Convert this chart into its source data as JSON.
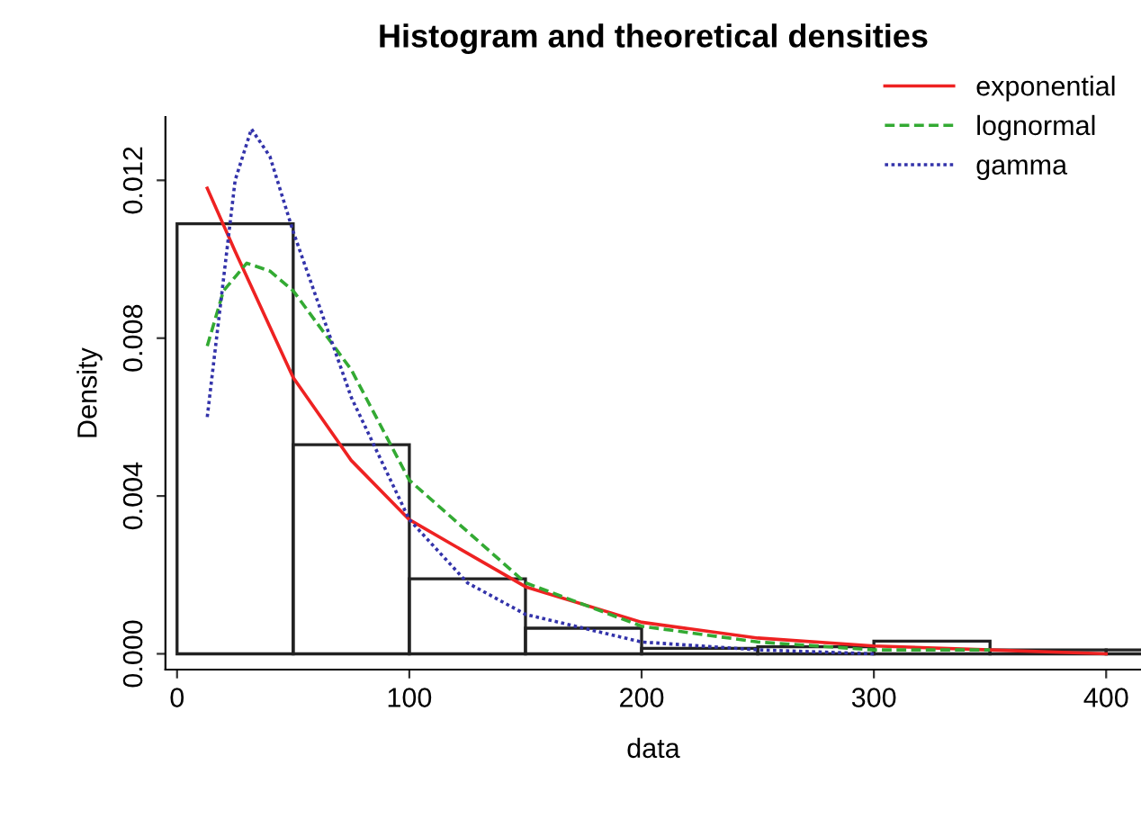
{
  "chart_data": {
    "type": "histogram",
    "title": "Histogram and theoretical densities",
    "xlabel": "data",
    "ylabel": "Density",
    "bins": [
      0,
      50,
      100,
      150,
      200,
      250,
      300,
      350,
      400,
      450
    ],
    "values": [
      0.0109,
      0.0053,
      0.0019,
      0.00065,
      0.00014,
      0.00018,
      0.00032,
      0.0001,
      0.0001
    ],
    "color": "#ffffff",
    "series": [
      {
        "name": "exponential",
        "type": "line",
        "color": "#ee2222",
        "line_style": "solid",
        "x": [
          13,
          25,
          50,
          75,
          100,
          150,
          200,
          250,
          300,
          350,
          400
        ],
        "values": [
          0.0118,
          0.0102,
          0.007,
          0.0049,
          0.0034,
          0.0017,
          0.0008,
          0.0004,
          0.0002,
          0.0001,
          0.0
        ]
      },
      {
        "name": "lognormal",
        "type": "line",
        "color": "#33aa33",
        "line_style": "dashed",
        "x": [
          13,
          20,
          30,
          40,
          50,
          75,
          100,
          150,
          200,
          250,
          300,
          350
        ],
        "values": [
          0.0078,
          0.0092,
          0.0099,
          0.0097,
          0.0092,
          0.0072,
          0.0044,
          0.0018,
          0.0007,
          0.0003,
          0.0001,
          0.0001
        ]
      },
      {
        "name": "gamma",
        "type": "line",
        "color": "#3333aa",
        "line_style": "dotted",
        "x": [
          13,
          20,
          25,
          32,
          40,
          50,
          75,
          100,
          125,
          150,
          200,
          250,
          300
        ],
        "values": [
          0.006,
          0.0095,
          0.012,
          0.0133,
          0.0126,
          0.0107,
          0.0065,
          0.0034,
          0.0018,
          0.001,
          0.0003,
          0.0001,
          0.0
        ]
      }
    ],
    "xlim": [
      -5,
      415
    ],
    "ylim": [
      -0.0004,
      0.0136
    ],
    "xticks": [
      0,
      100,
      200,
      300,
      400
    ],
    "yticks": [
      {
        "value": 0,
        "label": "0.000"
      },
      {
        "value": 0.004,
        "label": "0.004"
      },
      {
        "value": 0.008,
        "label": "0.008"
      },
      {
        "value": 0.012,
        "label": "0.012"
      }
    ],
    "legend": "top right",
    "grid": false
  }
}
